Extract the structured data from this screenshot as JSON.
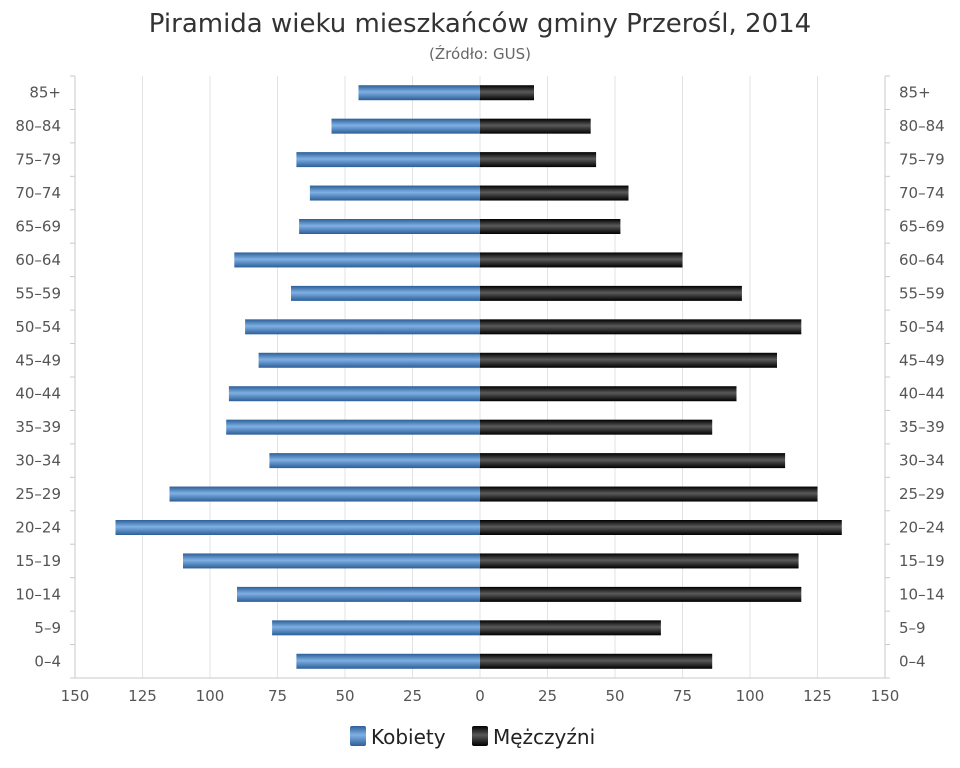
{
  "chart_data": {
    "type": "bar",
    "orientation": "horizontal",
    "title": "Piramida wieku mieszkańców gminy Przerośl, 2014",
    "subtitle": "(Źródło: GUS)",
    "categories": [
      "85+",
      "80–84",
      "75–79",
      "70–74",
      "65–69",
      "60–64",
      "55–59",
      "50–54",
      "45–49",
      "40–44",
      "35–39",
      "30–34",
      "25–29",
      "20–24",
      "15–19",
      "10–14",
      "5–9",
      "0–4"
    ],
    "series": [
      {
        "name": "Kobiety",
        "color": "#3f7ec0",
        "side": "left",
        "values": [
          45,
          55,
          68,
          63,
          67,
          91,
          70,
          87,
          82,
          93,
          94,
          78,
          115,
          135,
          110,
          90,
          77,
          68
        ]
      },
      {
        "name": "Mężczyźni",
        "color": "#1e1e1e",
        "side": "right",
        "values": [
          20,
          41,
          43,
          55,
          52,
          75,
          97,
          119,
          110,
          95,
          86,
          113,
          125,
          134,
          118,
          119,
          67,
          86
        ]
      }
    ],
    "xlim": [
      -150,
      150
    ],
    "xticks": [
      "150",
      "125",
      "100",
      "75",
      "50",
      "25",
      "0",
      "25",
      "50",
      "75",
      "100",
      "125",
      "150"
    ],
    "grid": true,
    "legend_position": "bottom-center"
  }
}
